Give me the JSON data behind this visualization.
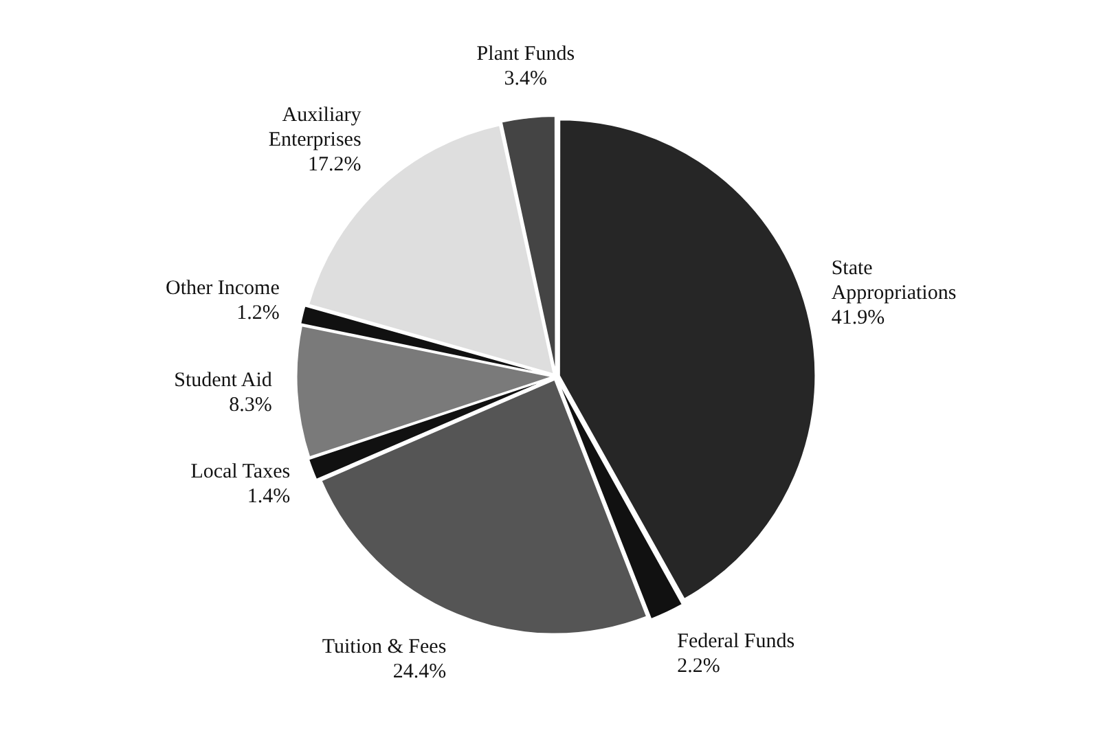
{
  "chart_data": {
    "type": "pie",
    "categories": [
      "State Appropriations",
      "Federal Funds",
      "Tuition & Fees",
      "Local Taxes",
      "Student Aid",
      "Other Income",
      "Auxiliary Enterprises",
      "Plant Funds"
    ],
    "values": [
      41.9,
      2.2,
      24.4,
      1.4,
      8.3,
      1.2,
      17.2,
      3.4
    ],
    "value_labels": [
      "41.9%",
      "2.2%",
      "24.4%",
      "1.4%",
      "8.3%",
      "1.2%",
      "17.2%",
      "3.4%"
    ],
    "colors": [
      "#262626",
      "#111111",
      "#555555",
      "#111111",
      "#7a7a7a",
      "#111111",
      "#dedede",
      "#444444"
    ],
    "legend": false
  }
}
